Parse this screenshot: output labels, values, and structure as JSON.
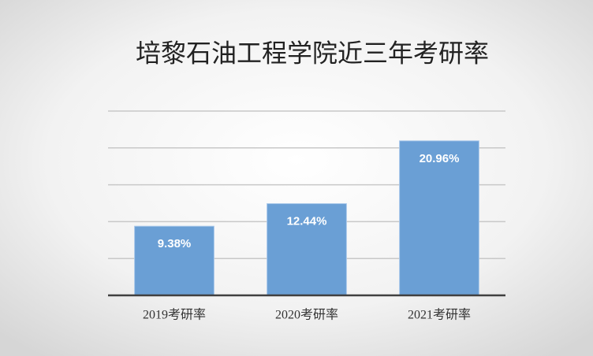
{
  "chart_data": {
    "type": "bar",
    "title": "培黎石油工程学院近三年考研率",
    "categories": [
      "2019考研率",
      "2020考研率",
      "2021考研率"
    ],
    "values": [
      9.38,
      12.44,
      20.96
    ],
    "value_labels": [
      "9.38%",
      "12.44%",
      "20.96%"
    ],
    "color": "#6a9fd5",
    "ylim": [
      0,
      25
    ],
    "yticks": [
      0,
      5,
      10,
      15,
      20,
      25
    ],
    "grid": true
  }
}
